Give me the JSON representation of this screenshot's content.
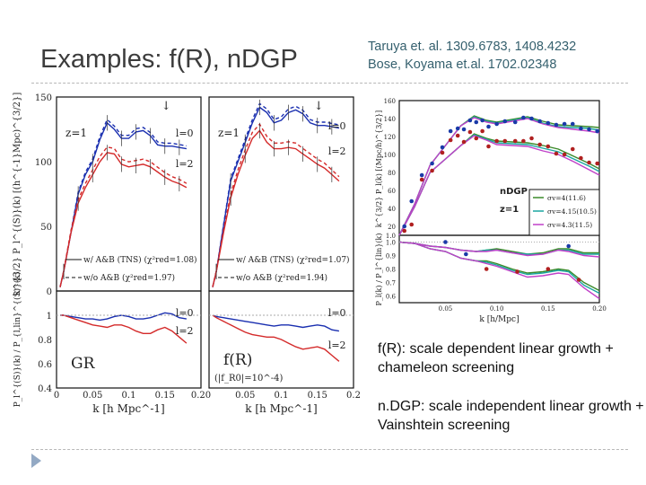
{
  "slide": {
    "title": "Examples: f(R), nDGP",
    "citations": [
      "Taruya et. al. 1309.6783, 1408.4232",
      "Bose, Koyama et.al. 1702.02348"
    ],
    "bullets": [
      "f(R): scale dependent linear growth + chameleon screening",
      "n.DGP: scale independent linear growth + Vainshtein screening"
    ],
    "nav_icon": "triangle-right-icon"
  },
  "chart_data": [
    {
      "type": "line",
      "panel": "GR",
      "ylabel": "k^{3/2} P_l^{(S)}(k) [(h^{-1}Mpc)^{3/2}]",
      "ratio_ylabel": "P_l^{(S)}(k) / P_{l,lin}^{(S)}(k)",
      "xlabel": "k [h Mpc^-1]",
      "xlim": [
        0,
        0.2
      ],
      "ylim": [
        0,
        150
      ],
      "ratio_ylim": [
        0.4,
        1.2
      ],
      "xticks": [
        "0",
        "0.05",
        "0.1",
        "0.15",
        "0.20"
      ],
      "yticks": [
        "0",
        "50",
        "100",
        "150"
      ],
      "ratio_yticks": [
        "0.4",
        "0.6",
        "0.8",
        "1"
      ],
      "annotations": [
        "z=1",
        "l=0",
        "l=2",
        "GR"
      ],
      "legend": [
        "w/ A&B (TNS) (χ²red=1.08)",
        "w/o A&B (χ²red=1.97)"
      ],
      "x": [
        0.005,
        0.01,
        0.02,
        0.03,
        0.04,
        0.05,
        0.06,
        0.07,
        0.08,
        0.09,
        0.1,
        0.11,
        0.12,
        0.13,
        0.14,
        0.15,
        0.16,
        0.17,
        0.18
      ],
      "series": [
        {
          "name": "l=0",
          "color": "#1a2fb0",
          "values": [
            3,
            15,
            45,
            75,
            90,
            100,
            117,
            130,
            125,
            118,
            118,
            123,
            124,
            120,
            113,
            112,
            112,
            111,
            110
          ]
        },
        {
          "name": "l=2",
          "color": "#d42a2a",
          "values": [
            3,
            15,
            45,
            68,
            80,
            90,
            100,
            107,
            106,
            98,
            96,
            97,
            98,
            96,
            92,
            88,
            85,
            83,
            80
          ]
        }
      ],
      "ratio_series": [
        {
          "name": "l=0",
          "color": "#1a2fb0",
          "values": [
            1,
            1,
            0.99,
            0.98,
            0.97,
            0.97,
            0.96,
            0.97,
            0.99,
            1.0,
            0.99,
            0.97,
            0.97,
            0.98,
            1.0,
            1.02,
            1.01,
            0.98,
            0.97
          ]
        },
        {
          "name": "l=2",
          "color": "#d42a2a",
          "values": [
            1,
            1,
            0.98,
            0.96,
            0.94,
            0.92,
            0.91,
            0.9,
            0.92,
            0.92,
            0.9,
            0.87,
            0.85,
            0.85,
            0.88,
            0.9,
            0.87,
            0.82,
            0.77
          ]
        }
      ]
    },
    {
      "type": "line",
      "panel": "f(R)",
      "xlabel": "k [h Mpc^-1]",
      "xlim": [
        0,
        0.2
      ],
      "ylim": [
        0,
        150
      ],
      "ratio_ylim": [
        0.4,
        1.2
      ],
      "xticks": [
        "0.05",
        "0.1",
        "0.15",
        "0.2"
      ],
      "annotations": [
        "z=1",
        "l=0",
        "l=2",
        "f(R)",
        "(|f_R0|=10^-4)"
      ],
      "legend": [
        "w/ A&B (TNS) (χ²red=1.07)",
        "w/o A&B (χ²red=1.94)"
      ],
      "x": [
        0.005,
        0.01,
        0.02,
        0.03,
        0.04,
        0.05,
        0.06,
        0.07,
        0.08,
        0.09,
        0.1,
        0.11,
        0.12,
        0.13,
        0.14,
        0.15,
        0.16,
        0.17,
        0.18
      ],
      "series": [
        {
          "name": "l=0",
          "color": "#1a2fb0",
          "values": [
            3,
            15,
            50,
            85,
            100,
            115,
            130,
            142,
            138,
            130,
            132,
            138,
            140,
            137,
            130,
            128,
            128,
            127,
            126
          ]
        },
        {
          "name": "l=2",
          "color": "#d42a2a",
          "values": [
            3,
            15,
            45,
            72,
            90,
            105,
            118,
            124,
            115,
            110,
            110,
            111,
            110,
            106,
            102,
            98,
            95,
            90,
            85
          ]
        }
      ],
      "ratio_series": [
        {
          "name": "l=0",
          "color": "#1a2fb0",
          "values": [
            1,
            0.99,
            0.98,
            0.97,
            0.96,
            0.95,
            0.94,
            0.93,
            0.92,
            0.91,
            0.92,
            0.92,
            0.91,
            0.9,
            0.91,
            0.92,
            0.91,
            0.88,
            0.87
          ]
        },
        {
          "name": "l=2",
          "color": "#d42a2a",
          "values": [
            1,
            0.98,
            0.95,
            0.92,
            0.89,
            0.86,
            0.84,
            0.83,
            0.82,
            0.82,
            0.8,
            0.77,
            0.74,
            0.72,
            0.73,
            0.74,
            0.72,
            0.67,
            0.62
          ]
        }
      ]
    },
    {
      "type": "line",
      "panel": "nDGP",
      "ylabel": "k^{3/2} P_l(k) [(Mpc/h)^{3/2}]",
      "ratio_ylabel": "P_l(k) / P_l^{lin}(k)",
      "xlabel": "k [h/Mpc]",
      "xlim": [
        0.005,
        0.2
      ],
      "ylim": [
        10,
        160
      ],
      "ratio_ylim": [
        0.55,
        1.05
      ],
      "xticks": [
        "0.05",
        "0.10",
        "0.15",
        "0.20"
      ],
      "yticks": [
        "1.0",
        "20",
        "40",
        "60",
        "80",
        "100",
        "120",
        "140",
        "160"
      ],
      "ratio_yticks": [
        "0.6",
        "0.7",
        "0.8",
        "0.9",
        "1.0"
      ],
      "annotations": [
        "nDGP",
        "z=1"
      ],
      "legend_position": "right",
      "x": [
        0.005,
        0.02,
        0.035,
        0.05,
        0.065,
        0.078,
        0.09,
        0.1,
        0.115,
        0.13,
        0.145,
        0.16,
        0.175,
        0.19,
        0.2
      ],
      "series": [
        {
          "name": "σv=4(11.6)",
          "color": "#3a8a2a",
          "values": [
            10,
            45,
            88,
            110,
            132,
            143,
            138,
            136,
            139,
            142,
            137,
            133,
            132,
            131,
            130
          ]
        },
        {
          "name": "σv=4.15(10.5)",
          "color": "#1aa6a0",
          "values": [
            10,
            45,
            88,
            110,
            132,
            142,
            137,
            135,
            138,
            141,
            135,
            131,
            130,
            129,
            127
          ]
        },
        {
          "name": "σv=4.3(11.5)",
          "color": "#c040c8",
          "values": [
            10,
            45,
            88,
            110,
            132,
            141,
            136,
            134,
            137,
            140,
            134,
            130,
            128,
            126,
            124
          ]
        },
        {
          "name": "σv=4(11.6) l=2",
          "color": "#3a8a2a",
          "values": [
            10,
            42,
            80,
            95,
            110,
            123,
            118,
            115,
            114,
            113,
            110,
            106,
            98,
            90,
            84
          ]
        },
        {
          "name": "σv=4.15(10.5) l=2",
          "color": "#1aa6a0",
          "values": [
            10,
            42,
            80,
            95,
            110,
            122,
            117,
            113,
            112,
            111,
            107,
            103,
            95,
            87,
            81
          ]
        },
        {
          "name": "σv=4.3(11.5) l=2",
          "color": "#c040c8",
          "values": [
            10,
            42,
            80,
            95,
            110,
            121,
            116,
            111,
            110,
            109,
            104,
            100,
            92,
            83,
            77
          ]
        }
      ],
      "points": [
        {
          "color": "#1a3aa8",
          "x": [
            0.01,
            0.017,
            0.027,
            0.037,
            0.047,
            0.055,
            0.062,
            0.068,
            0.074,
            0.08,
            0.086,
            0.092,
            0.1,
            0.108,
            0.118,
            0.126,
            0.134,
            0.142,
            0.15,
            0.158,
            0.166,
            0.174,
            0.182,
            0.19,
            0.198
          ],
          "values": [
            20,
            48,
            77,
            90,
            108,
            126,
            129,
            128,
            138,
            136,
            138,
            131,
            134,
            137,
            136,
            141,
            140,
            137,
            135,
            133,
            134,
            134,
            129,
            128,
            126
          ]
        },
        {
          "color": "#b02020",
          "x": [
            0.01,
            0.017,
            0.027,
            0.037,
            0.047,
            0.055,
            0.062,
            0.068,
            0.074,
            0.08,
            0.086,
            0.092,
            0.1,
            0.108,
            0.118,
            0.126,
            0.134,
            0.142,
            0.15,
            0.158,
            0.166,
            0.174,
            0.182,
            0.19,
            0.198
          ],
          "values": [
            15,
            22,
            72,
            82,
            102,
            116,
            121,
            114,
            125,
            118,
            126,
            109,
            115,
            115,
            115,
            115,
            118,
            111,
            109,
            101,
            100,
            106,
            96,
            91,
            90
          ]
        }
      ],
      "ratio_x": [
        0.005,
        0.02,
        0.035,
        0.05,
        0.065,
        0.08,
        0.09,
        0.1,
        0.115,
        0.13,
        0.145,
        0.16,
        0.17,
        0.185,
        0.2
      ],
      "ratio_series": [
        {
          "name": "σv=4(11.6)",
          "color": "#3a8a2a",
          "values": [
            1,
            0.99,
            0.97,
            0.96,
            0.94,
            0.93,
            0.94,
            0.95,
            0.93,
            0.91,
            0.92,
            0.95,
            0.95,
            0.92,
            0.92
          ]
        },
        {
          "name": "σv=4.15(10.5)",
          "color": "#1aa6a0",
          "values": [
            1,
            0.99,
            0.97,
            0.96,
            0.94,
            0.93,
            0.94,
            0.94,
            0.92,
            0.91,
            0.91,
            0.94,
            0.94,
            0.91,
            0.91
          ]
        },
        {
          "name": "σv=4.3(11.5)",
          "color": "#c040c8",
          "values": [
            1,
            0.99,
            0.97,
            0.96,
            0.94,
            0.93,
            0.93,
            0.94,
            0.92,
            0.9,
            0.91,
            0.94,
            0.93,
            0.9,
            0.89
          ]
        },
        {
          "name": "σv=4(11.6) l=2",
          "color": "#3a8a2a",
          "values": [
            1,
            0.99,
            0.95,
            0.93,
            0.88,
            0.86,
            0.86,
            0.84,
            0.8,
            0.77,
            0.78,
            0.8,
            0.79,
            0.7,
            0.64
          ]
        },
        {
          "name": "σv=4.15(10.5) l=2",
          "color": "#1aa6a0",
          "values": [
            1,
            0.99,
            0.95,
            0.93,
            0.88,
            0.86,
            0.85,
            0.83,
            0.79,
            0.76,
            0.77,
            0.79,
            0.78,
            0.68,
            0.62
          ]
        },
        {
          "name": "σv=4.3(11.5) l=2",
          "color": "#c040c8",
          "values": [
            1,
            0.99,
            0.95,
            0.93,
            0.88,
            0.86,
            0.84,
            0.82,
            0.78,
            0.74,
            0.75,
            0.77,
            0.76,
            0.66,
            0.58
          ]
        }
      ]
    }
  ]
}
